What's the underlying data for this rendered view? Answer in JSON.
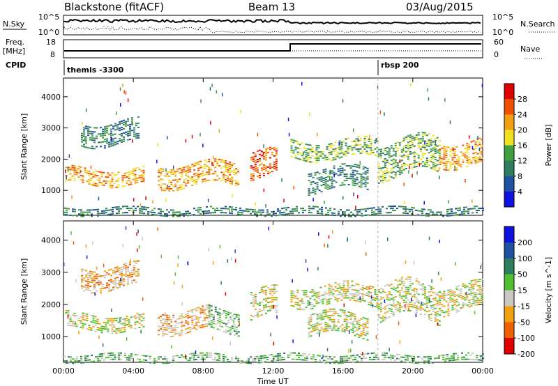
{
  "header": {
    "station": "Blackstone (fitACF)",
    "beam": "Beam 13",
    "date": "03/Aug/2015"
  },
  "top_panels": {
    "nsky_label": "N.Sky",
    "nsearch_label": "N.Search",
    "nsky_ticks": [
      "10^5",
      "10^0"
    ],
    "nsearch_ticks": [
      "10^5",
      "10^0"
    ],
    "freq_label": "Freq.",
    "freq_unit": "[MHz]",
    "freq_ticks": [
      "18",
      "8"
    ],
    "nave_label": "Nave",
    "nave_ticks": [
      "60",
      "0"
    ],
    "cpid_label": "CPID",
    "cpid_entries": [
      {
        "label": "themis -3300",
        "start_hour": 0
      },
      {
        "label": "rbsp 200",
        "start_hour": 18
      }
    ]
  },
  "chart_data": [
    {
      "type": "heatmap",
      "name": "power",
      "title": "",
      "xlabel": "Time UT",
      "ylabel": "Slant Range [km]",
      "xlim": [
        0,
        24
      ],
      "ylim": [
        200,
        4600
      ],
      "x_ticks": [
        "00:00",
        "04:00",
        "08:00",
        "12:00",
        "16:00",
        "20:00",
        "00:00"
      ],
      "x_tick_hours": [
        0,
        4,
        8,
        12,
        16,
        20,
        24
      ],
      "y_ticks": [
        1000,
        2000,
        3000,
        4000
      ],
      "colorbar": {
        "label": "Power [dB]",
        "ticks": [
          "4",
          "8",
          "12",
          "16",
          "20",
          "24",
          "28"
        ],
        "colors": [
          "#1010e0",
          "#2050a0",
          "#2e7d5e",
          "#40a040",
          "#f0e020",
          "#f0a010",
          "#f05000",
          "#e00000"
        ]
      },
      "echo_bands": [
        {
          "t0": 0.1,
          "t1": 4.6,
          "r0": 1200,
          "r1": 1700,
          "level": 5
        },
        {
          "t0": 1.0,
          "t1": 4.3,
          "r0": 2500,
          "r1": 3200,
          "level": 2
        },
        {
          "t0": 5.4,
          "t1": 10.0,
          "r0": 1150,
          "r1": 1850,
          "level": 5
        },
        {
          "t0": 10.7,
          "t1": 12.2,
          "r0": 1500,
          "r1": 2400,
          "level": 6
        },
        {
          "t0": 13.0,
          "t1": 18.0,
          "r0": 2000,
          "r1": 2600,
          "level": 3
        },
        {
          "t0": 14.0,
          "t1": 17.4,
          "r0": 1000,
          "r1": 1700,
          "level": 2
        },
        {
          "t0": 18.0,
          "t1": 21.5,
          "r0": 1500,
          "r1": 2600,
          "level": 3
        },
        {
          "t0": 21.5,
          "t1": 24.0,
          "r0": 1800,
          "r1": 2600,
          "level": 5
        },
        {
          "t0": 0.0,
          "t1": 24.0,
          "r0": 200,
          "r1": 450,
          "level": 2
        }
      ]
    },
    {
      "type": "heatmap",
      "name": "velocity",
      "title": "",
      "xlabel": "Time UT",
      "ylabel": "Slant Range [km]",
      "xlim": [
        0,
        24
      ],
      "ylim": [
        200,
        4600
      ],
      "x_ticks": [
        "00:00",
        "04:00",
        "08:00",
        "12:00",
        "16:00",
        "20:00",
        "00:00"
      ],
      "x_tick_hours": [
        0,
        4,
        8,
        12,
        16,
        20,
        24
      ],
      "y_ticks": [
        1000,
        2000,
        3000,
        4000
      ],
      "colorbar": {
        "label": "Velocity [m s^-1]",
        "ticks": [
          "200",
          "100",
          "50",
          "15",
          "-15",
          "-50",
          "-100",
          "-200"
        ],
        "colors": [
          "#1010e0",
          "#2050a0",
          "#2e7d5e",
          "#50c030",
          "#c8c8c0",
          "#f0a010",
          "#f06000",
          "#e00000"
        ]
      },
      "echo_bands": [
        {
          "t0": 0.1,
          "t1": 4.6,
          "r0": 1200,
          "r1": 1700,
          "level": 4
        },
        {
          "t0": 1.0,
          "t1": 4.3,
          "r0": 2500,
          "r1": 3200,
          "level": 5
        },
        {
          "t0": 5.4,
          "t1": 8.3,
          "r0": 1150,
          "r1": 1850,
          "level": 5
        },
        {
          "t0": 8.3,
          "t1": 10.0,
          "r0": 1150,
          "r1": 1850,
          "level": 3
        },
        {
          "t0": 10.7,
          "t1": 12.2,
          "r0": 1500,
          "r1": 2400,
          "level": 4
        },
        {
          "t0": 13.0,
          "t1": 18.0,
          "r0": 2000,
          "r1": 2600,
          "level": 4
        },
        {
          "t0": 14.0,
          "t1": 17.4,
          "r0": 1000,
          "r1": 1700,
          "level": 4
        },
        {
          "t0": 18.0,
          "t1": 21.5,
          "r0": 1500,
          "r1": 2600,
          "level": 4
        },
        {
          "t0": 21.5,
          "t1": 24.0,
          "r0": 1800,
          "r1": 2600,
          "level": 4
        },
        {
          "t0": 0.0,
          "t1": 24.0,
          "r0": 200,
          "r1": 450,
          "level": 3
        }
      ]
    }
  ]
}
